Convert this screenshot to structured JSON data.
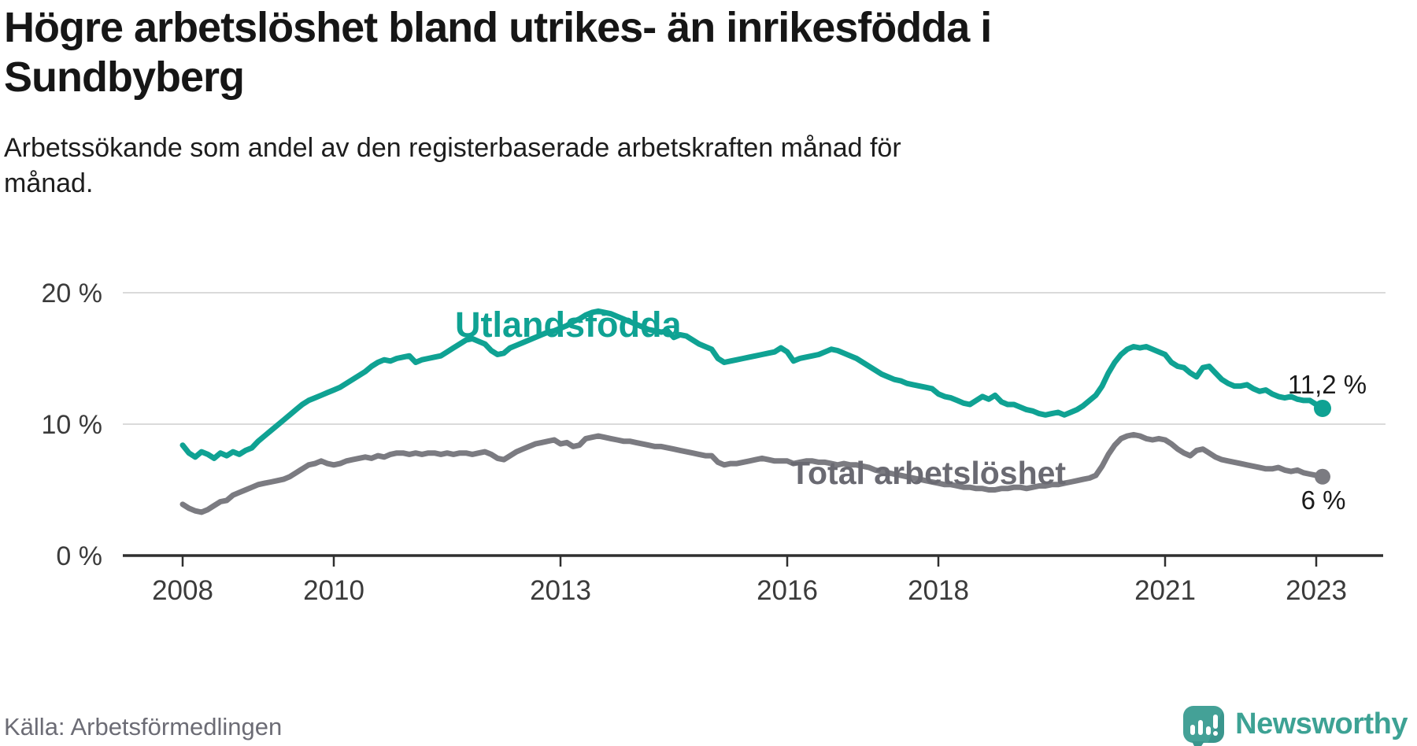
{
  "header": {
    "title_line1": "Högre arbetslöshet bland utrikes- än inrikesfödda i",
    "title_line2": "Sundbyberg",
    "subtitle_line1": "Arbetssökande som andel av den registerbaserade arbetskraften månad för",
    "subtitle_line2": "månad."
  },
  "footer": {
    "source": "Källa: Arbetsförmedlingen",
    "brand_name": "Newsworthy",
    "brand_icon": "newsworthy-speech-bubble-barchart-icon"
  },
  "colors": {
    "foreign_born_line": "#0fa293",
    "total_line": "#7b7b81",
    "total_label": "#6a6a72",
    "grid": "#dadada",
    "axis": "#2f2f2f",
    "tick_text": "#3b3b3b",
    "annotation_text": "#1a1a1a",
    "brand_teal": "#43a096"
  },
  "chart_data": {
    "type": "line",
    "title": "Högre arbetslöshet bland utrikes- än inrikesfödda i Sundbyberg",
    "subtitle": "Arbetssökande som andel av den registerbaserade arbetskraften månad för månad.",
    "x_unit": "month",
    "x_start": {
      "year": 2008,
      "month": 1
    },
    "x_end": {
      "year": 2023,
      "month": 2
    },
    "ylim": [
      0,
      21
    ],
    "grid": "horizontal-only",
    "legend_position": "inline-labels",
    "y_ticks": [
      {
        "value": 0,
        "label": "0 %"
      },
      {
        "value": 10,
        "label": "10 %"
      },
      {
        "value": 20,
        "label": "20 %"
      }
    ],
    "y_gridlines": [
      10,
      20
    ],
    "x_ticks": [
      {
        "year": 2008,
        "label": "2008"
      },
      {
        "year": 2010,
        "label": "2010"
      },
      {
        "year": 2013,
        "label": "2013"
      },
      {
        "year": 2016,
        "label": "2016"
      },
      {
        "year": 2018,
        "label": "2018"
      },
      {
        "year": 2021,
        "label": "2021"
      },
      {
        "year": 2023,
        "label": "2023"
      }
    ],
    "series": [
      {
        "name": "Utlandsfödda",
        "color": "#0fa293",
        "end_label": "11,2 %",
        "end_value": 11.2,
        "values": [
          8.4,
          7.8,
          7.5,
          7.9,
          7.7,
          7.4,
          7.8,
          7.6,
          7.9,
          7.7,
          8.0,
          8.2,
          8.7,
          9.1,
          9.5,
          9.9,
          10.3,
          10.7,
          11.1,
          11.5,
          11.8,
          12.0,
          12.2,
          12.4,
          12.6,
          12.8,
          13.1,
          13.4,
          13.7,
          14.0,
          14.4,
          14.7,
          14.9,
          14.8,
          15.0,
          15.1,
          15.2,
          14.7,
          14.9,
          15.0,
          15.1,
          15.2,
          15.5,
          15.8,
          16.1,
          16.4,
          16.5,
          16.3,
          16.1,
          15.6,
          15.3,
          15.4,
          15.8,
          16.0,
          16.2,
          16.4,
          16.6,
          16.8,
          17.0,
          17.1,
          17.3,
          17.5,
          17.8,
          18.0,
          18.3,
          18.5,
          18.6,
          18.5,
          18.4,
          18.2,
          18.0,
          17.8,
          17.6,
          17.4,
          17.2,
          17.1,
          17.0,
          17.1,
          16.6,
          16.8,
          16.7,
          16.4,
          16.1,
          15.9,
          15.7,
          15.0,
          14.7,
          14.8,
          14.9,
          15.0,
          15.1,
          15.2,
          15.3,
          15.4,
          15.5,
          15.8,
          15.5,
          14.8,
          15.0,
          15.1,
          15.2,
          15.3,
          15.5,
          15.7,
          15.6,
          15.4,
          15.2,
          15.0,
          14.7,
          14.4,
          14.1,
          13.8,
          13.6,
          13.4,
          13.3,
          13.1,
          13.0,
          12.9,
          12.8,
          12.7,
          12.3,
          12.1,
          12.0,
          11.8,
          11.6,
          11.5,
          11.8,
          12.1,
          11.9,
          12.2,
          11.7,
          11.5,
          11.5,
          11.3,
          11.1,
          11.0,
          10.8,
          10.7,
          10.8,
          10.9,
          10.7,
          10.9,
          11.1,
          11.4,
          11.8,
          12.2,
          12.9,
          13.9,
          14.7,
          15.3,
          15.7,
          15.9,
          15.8,
          15.9,
          15.7,
          15.5,
          15.3,
          14.7,
          14.4,
          14.3,
          13.9,
          13.6,
          14.3,
          14.4,
          13.9,
          13.4,
          13.1,
          12.9,
          12.9,
          13.0,
          12.7,
          12.5,
          12.6,
          12.3,
          12.1,
          12.0,
          12.1,
          11.9,
          11.8,
          11.8,
          11.5,
          11.2
        ]
      },
      {
        "name": "Total arbetslöshet",
        "color": "#7b7b81",
        "end_label": "6 %",
        "end_value": 6.0,
        "values": [
          3.9,
          3.6,
          3.4,
          3.3,
          3.5,
          3.8,
          4.1,
          4.2,
          4.6,
          4.8,
          5.0,
          5.2,
          5.4,
          5.5,
          5.6,
          5.7,
          5.8,
          6.0,
          6.3,
          6.6,
          6.9,
          7.0,
          7.2,
          7.0,
          6.9,
          7.0,
          7.2,
          7.3,
          7.4,
          7.5,
          7.4,
          7.6,
          7.5,
          7.7,
          7.8,
          7.8,
          7.7,
          7.8,
          7.7,
          7.8,
          7.8,
          7.7,
          7.8,
          7.7,
          7.8,
          7.8,
          7.7,
          7.8,
          7.9,
          7.7,
          7.4,
          7.3,
          7.6,
          7.9,
          8.1,
          8.3,
          8.5,
          8.6,
          8.7,
          8.8,
          8.5,
          8.6,
          8.3,
          8.4,
          8.9,
          9.0,
          9.1,
          9.0,
          8.9,
          8.8,
          8.7,
          8.7,
          8.6,
          8.5,
          8.4,
          8.3,
          8.3,
          8.2,
          8.1,
          8.0,
          7.9,
          7.8,
          7.7,
          7.6,
          7.6,
          7.1,
          6.9,
          7.0,
          7.0,
          7.1,
          7.2,
          7.3,
          7.4,
          7.3,
          7.2,
          7.2,
          7.2,
          7.0,
          7.1,
          7.2,
          7.2,
          7.1,
          7.1,
          7.0,
          6.9,
          7.0,
          6.9,
          6.9,
          6.8,
          6.7,
          6.5,
          6.4,
          6.3,
          6.2,
          6.1,
          6.0,
          5.9,
          5.8,
          5.7,
          5.6,
          5.5,
          5.4,
          5.4,
          5.3,
          5.2,
          5.2,
          5.1,
          5.1,
          5.0,
          5.0,
          5.1,
          5.1,
          5.2,
          5.2,
          5.1,
          5.2,
          5.3,
          5.3,
          5.4,
          5.4,
          5.5,
          5.6,
          5.7,
          5.8,
          5.9,
          6.1,
          6.8,
          7.7,
          8.4,
          8.9,
          9.1,
          9.2,
          9.1,
          8.9,
          8.8,
          8.9,
          8.8,
          8.5,
          8.1,
          7.8,
          7.6,
          8.0,
          8.1,
          7.8,
          7.5,
          7.3,
          7.2,
          7.1,
          7.0,
          6.9,
          6.8,
          6.7,
          6.6,
          6.6,
          6.7,
          6.5,
          6.4,
          6.5,
          6.3,
          6.2,
          6.1,
          6.0
        ]
      }
    ]
  }
}
